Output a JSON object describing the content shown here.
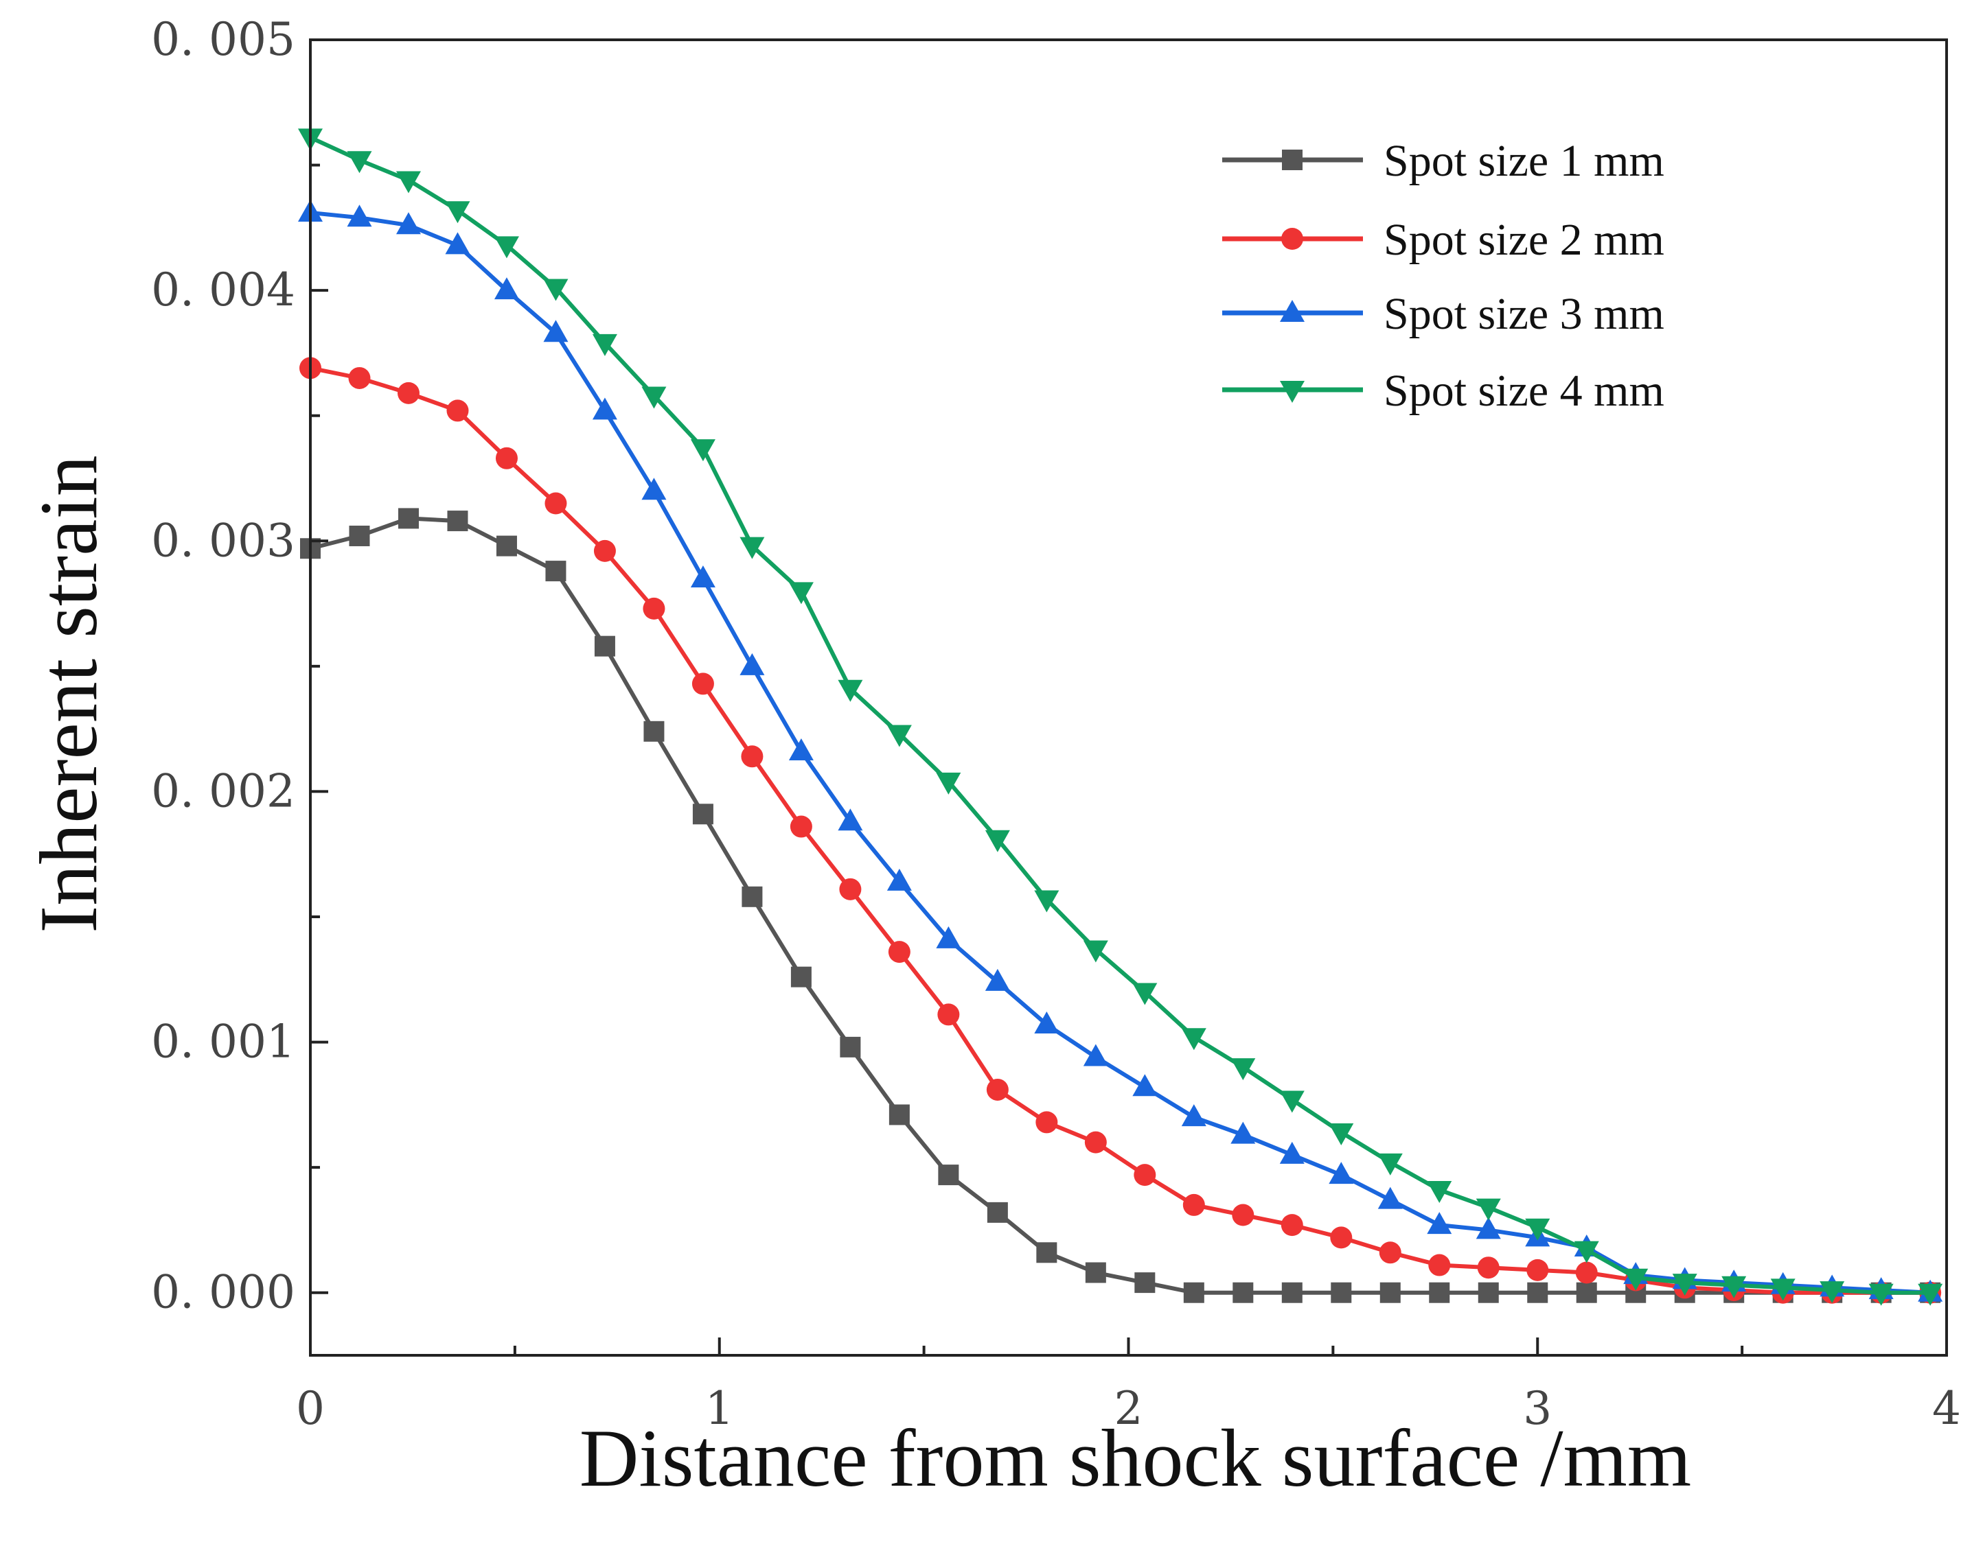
{
  "chart_data": {
    "type": "line",
    "title": "",
    "xlabel": "Distance from shock surface /mm",
    "ylabel": "Inherent strain",
    "xlim": [
      0,
      4
    ],
    "ylim": [
      -0.00025,
      0.005
    ],
    "x_ticks": [
      0,
      1,
      2,
      3,
      4
    ],
    "x_tick_labels": [
      "0",
      "1",
      "2",
      "3",
      "4"
    ],
    "y_ticks": [
      0,
      0.001,
      0.002,
      0.003,
      0.004,
      0.005
    ],
    "y_tick_labels": [
      "0. 000",
      "0. 001",
      "0. 002",
      "0. 003",
      "0. 004",
      "0. 005"
    ],
    "grid": false,
    "legend_position": "top-right",
    "x": [
      0,
      0.12,
      0.24,
      0.36,
      0.48,
      0.6,
      0.72,
      0.84,
      0.96,
      1.08,
      1.2,
      1.32,
      1.44,
      1.56,
      1.68,
      1.8,
      1.92,
      2.04,
      2.16,
      2.28,
      2.4,
      2.52,
      2.64,
      2.76,
      2.88,
      3.0,
      3.12,
      3.24,
      3.36,
      3.48,
      3.6,
      3.72,
      3.84,
      3.96
    ],
    "series": [
      {
        "name": "Spot size 1 mm",
        "color": "#555555",
        "marker": "square",
        "values": [
          0.00297,
          0.00302,
          0.00309,
          0.00308,
          0.00298,
          0.00288,
          0.00258,
          0.00224,
          0.00191,
          0.00158,
          0.00126,
          0.00098,
          0.00071,
          0.00047,
          0.00032,
          0.00016,
          8e-05,
          4e-05,
          0.0,
          0.0,
          0.0,
          0.0,
          0.0,
          0.0,
          0.0,
          0.0,
          0.0,
          0.0,
          0.0,
          0.0,
          0.0,
          0.0,
          0.0,
          0.0
        ]
      },
      {
        "name": "Spot size 2 mm",
        "color": "#ee3333",
        "marker": "circle",
        "values": [
          0.00369,
          0.00365,
          0.00359,
          0.00352,
          0.00333,
          0.00315,
          0.00296,
          0.00273,
          0.00243,
          0.00214,
          0.00186,
          0.00161,
          0.00136,
          0.00111,
          0.00081,
          0.00068,
          0.0006,
          0.00047,
          0.00035,
          0.00031,
          0.00027,
          0.00022,
          0.00016,
          0.00011,
          0.0001,
          9e-05,
          8e-05,
          5e-05,
          2e-05,
          1e-05,
          0.0,
          0.0,
          0.0,
          0.0
        ]
      },
      {
        "name": "Spot size 3 mm",
        "color": "#1a66dd",
        "marker": "triangle-up",
        "values": [
          0.00431,
          0.00429,
          0.00426,
          0.00418,
          0.004,
          0.00383,
          0.00352,
          0.0032,
          0.00285,
          0.0025,
          0.00216,
          0.00188,
          0.00164,
          0.00141,
          0.00124,
          0.00107,
          0.00094,
          0.00082,
          0.0007,
          0.00063,
          0.00055,
          0.00047,
          0.00037,
          0.00027,
          0.00025,
          0.00022,
          0.00018,
          7e-05,
          5e-05,
          4e-05,
          3e-05,
          2e-05,
          1e-05,
          0.0
        ]
      },
      {
        "name": "Spot size 4 mm",
        "color": "#11a060",
        "marker": "triangle-down",
        "values": [
          0.00461,
          0.00452,
          0.00444,
          0.00432,
          0.00418,
          0.00401,
          0.00379,
          0.00358,
          0.00337,
          0.00298,
          0.0028,
          0.00241,
          0.00223,
          0.00204,
          0.00181,
          0.00157,
          0.00137,
          0.0012,
          0.00102,
          0.0009,
          0.00077,
          0.00064,
          0.00052,
          0.00041,
          0.00034,
          0.00026,
          0.00017,
          6e-05,
          4e-05,
          3e-05,
          2e-05,
          1e-05,
          0.0,
          0.0
        ]
      }
    ]
  }
}
